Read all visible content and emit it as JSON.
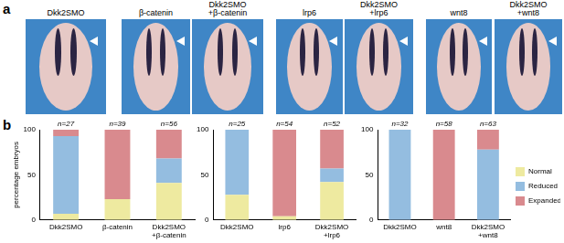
{
  "panel_labels": [
    "a",
    "b"
  ],
  "panel_a": {
    "images": [
      {
        "label": [
          "Dkk2SMO"
        ]
      },
      {
        "label": [
          "β-catenin"
        ]
      },
      {
        "label": [
          "Dkk2SMO",
          "+β-catenin"
        ]
      },
      {
        "label": [
          "lrp6"
        ]
      },
      {
        "label": [
          "Dkk2SMO",
          "+lrp6"
        ]
      },
      {
        "label": [
          "wnt8"
        ]
      },
      {
        "label": [
          "Dkk2SMO",
          "+wnt8"
        ]
      }
    ]
  },
  "chart_data": [
    {
      "type": "bar",
      "stacked": true,
      "y_label": "percentage embryos",
      "categories": [
        "Dkk2SMO",
        "β-catenin",
        "Dkk2SMO+β-catenin"
      ],
      "annotations": [
        "n=27",
        "n=39",
        "n=56"
      ],
      "series": [
        {
          "name": "Normal",
          "color": "#eeeaa0",
          "values": [
            7,
            23,
            41
          ]
        },
        {
          "name": "Reduced",
          "color": "#94bde0",
          "values": [
            86,
            0,
            27
          ]
        },
        {
          "name": "Expanded",
          "color": "#d98a8e",
          "values": [
            7,
            77,
            32
          ]
        }
      ],
      "ylim": [
        0,
        100
      ],
      "yticks": [
        0,
        50,
        100
      ],
      "grid": false
    },
    {
      "type": "bar",
      "stacked": true,
      "categories": [
        "Dkk2SMO",
        "lrp6",
        "Dkk2SMO+lrp6"
      ],
      "annotations": [
        "n=25",
        "n=54",
        "n=52"
      ],
      "series": [
        {
          "name": "Normal",
          "color": "#eeeaa0",
          "values": [
            28,
            4,
            42
          ]
        },
        {
          "name": "Reduced",
          "color": "#94bde0",
          "values": [
            72,
            0,
            15
          ]
        },
        {
          "name": "Expanded",
          "color": "#d98a8e",
          "values": [
            0,
            96,
            43
          ]
        }
      ],
      "ylim": [
        0,
        100
      ],
      "yticks": [
        0,
        50,
        100
      ],
      "grid": false
    },
    {
      "type": "bar",
      "stacked": true,
      "legend": "right",
      "categories": [
        "Dkk2SMO",
        "wnt8",
        "Dkk2SMO+wnt8"
      ],
      "annotations": [
        "n=32",
        "n=58",
        "n=63"
      ],
      "series": [
        {
          "name": "Normal",
          "color": "#eeeaa0",
          "values": [
            0,
            0,
            0
          ]
        },
        {
          "name": "Reduced",
          "color": "#94bde0",
          "values": [
            100,
            0,
            78
          ]
        },
        {
          "name": "Expanded",
          "color": "#d98a8e",
          "values": [
            0,
            100,
            22
          ]
        }
      ],
      "ylim": [
        0,
        100
      ],
      "yticks": [
        0,
        50,
        100
      ],
      "grid": false
    }
  ]
}
